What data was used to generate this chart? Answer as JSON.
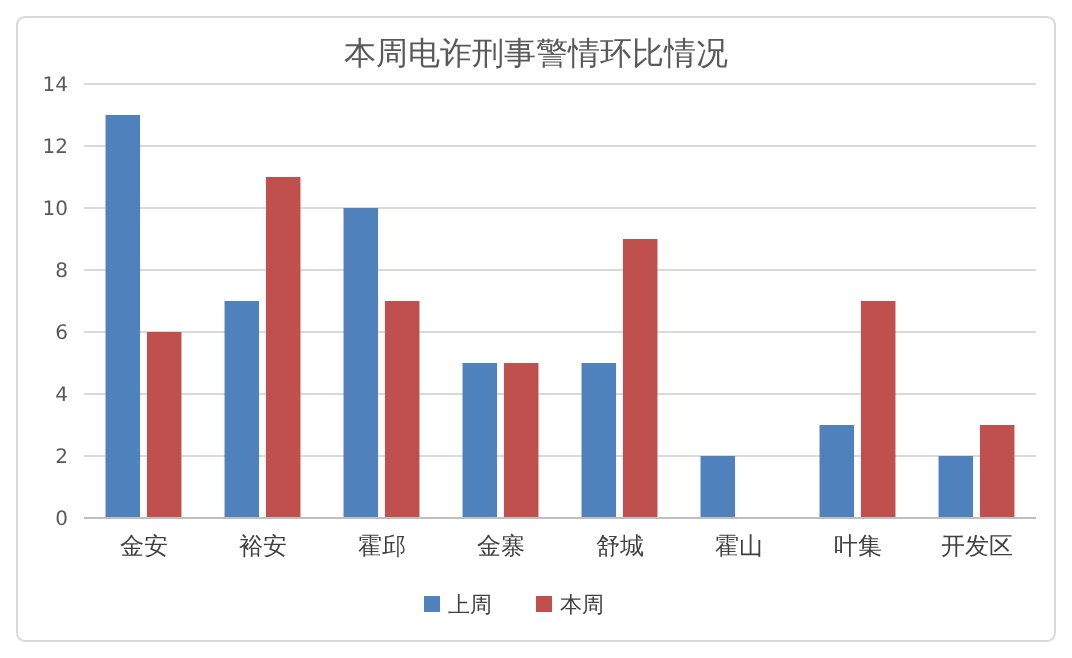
{
  "chart_data": {
    "type": "bar",
    "title": "本周电诈刑事警情环比情况",
    "categories": [
      "金安",
      "裕安",
      "霍邱",
      "金寨",
      "舒城",
      "霍山",
      "叶集",
      "开发区"
    ],
    "series": [
      {
        "name": "上周",
        "color": "#4f81bd",
        "values": [
          13,
          7,
          10,
          5,
          5,
          2,
          3,
          2
        ]
      },
      {
        "name": "本周",
        "color": "#c0504d",
        "values": [
          6,
          11,
          7,
          5,
          9,
          0,
          7,
          3
        ]
      }
    ],
    "ylim": [
      0,
      14
    ],
    "yticks": [
      0,
      2,
      4,
      6,
      8,
      10,
      12,
      14
    ],
    "grid": "y",
    "legend": "bottom"
  }
}
